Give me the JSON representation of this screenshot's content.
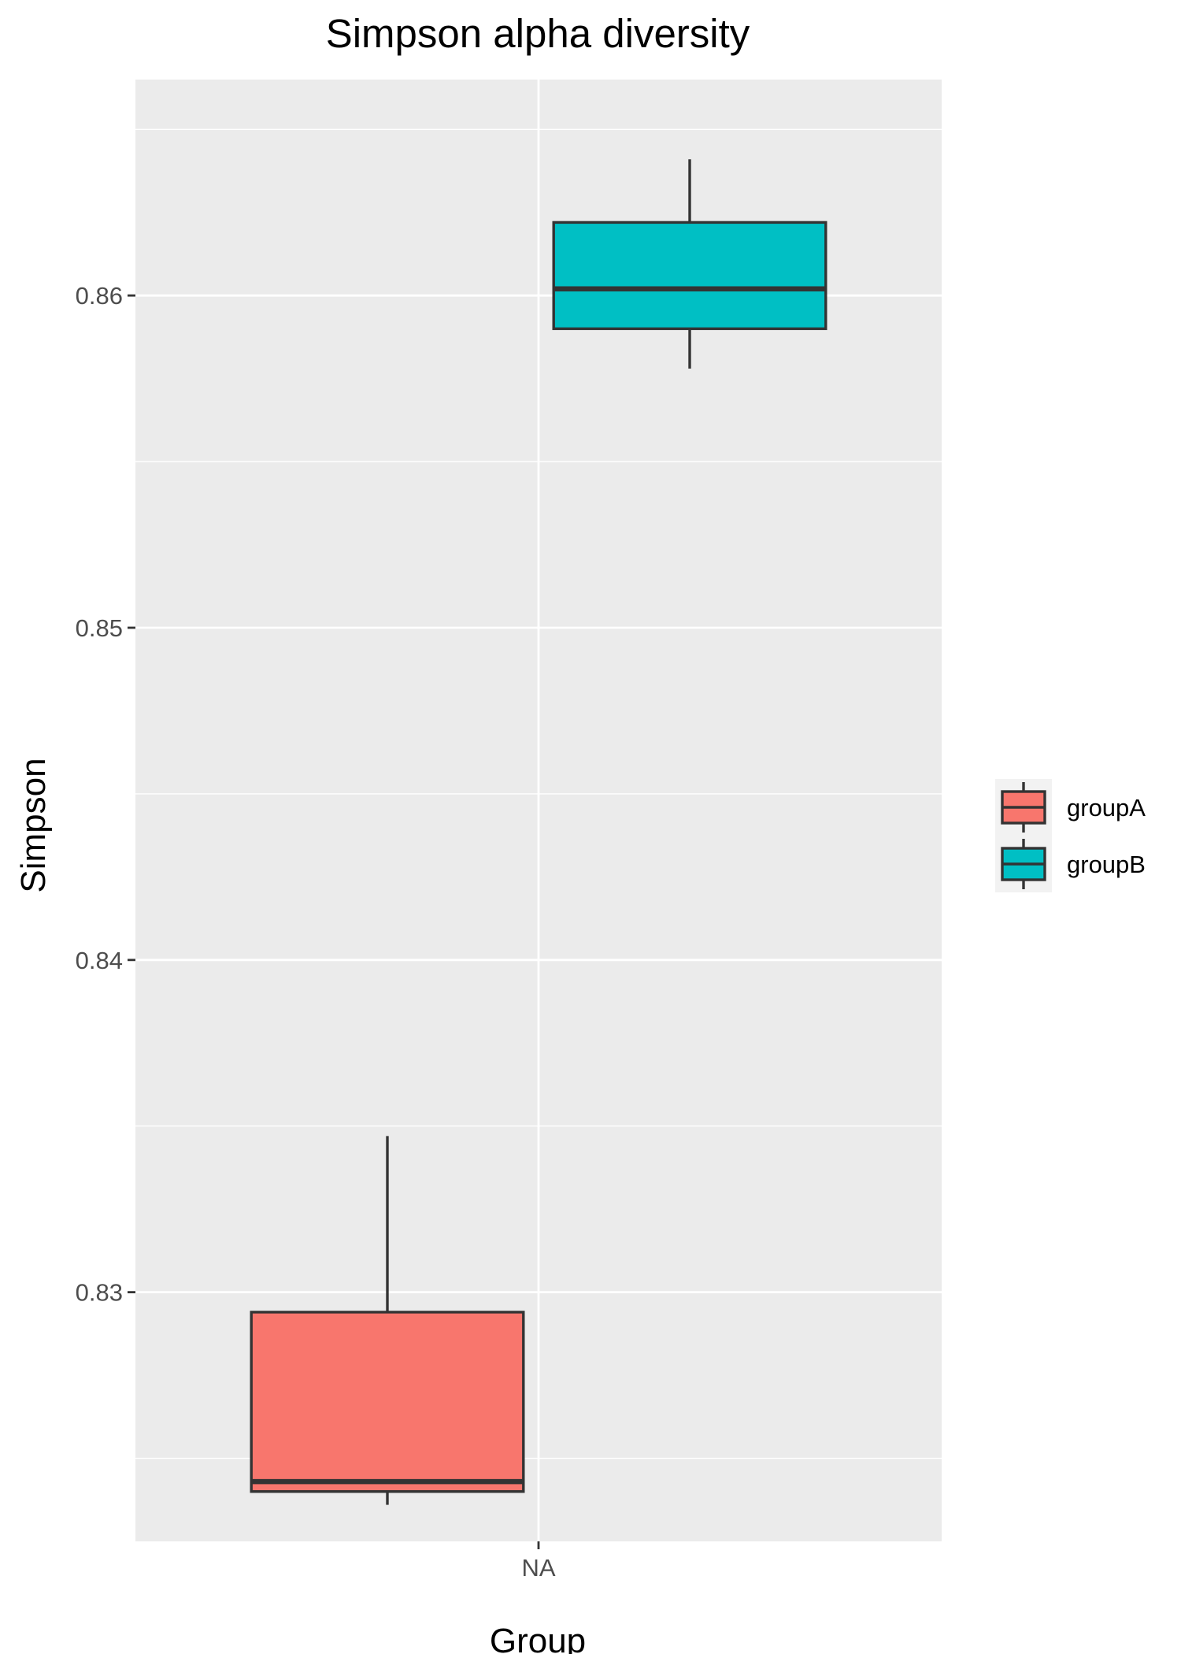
{
  "chart_data": {
    "type": "box",
    "title": "Simpson alpha diversity",
    "xlabel": "Group",
    "ylabel": "Simpson",
    "categories": [
      "NA"
    ],
    "ylim": [
      0.8225,
      0.8665
    ],
    "yticks": [
      0.83,
      0.84,
      0.85,
      0.86
    ],
    "ytick_labels": [
      "0.83",
      "0.84",
      "0.85",
      "0.86"
    ],
    "y_minor_ticks": [
      0.825,
      0.835,
      0.845,
      0.855,
      0.865
    ],
    "grid": true,
    "legend_position": "right",
    "panel_color": "#ebebeb",
    "series": [
      {
        "name": "groupA",
        "color": "#f8766d",
        "category": "NA",
        "whisker_low": 0.8236,
        "q1": 0.824,
        "median": 0.8243,
        "q3": 0.8294,
        "whisker_high": 0.8347
      },
      {
        "name": "groupB",
        "color": "#00bfc4",
        "category": "NA",
        "whisker_low": 0.8578,
        "q1": 0.859,
        "median": 0.8602,
        "q3": 0.8622,
        "whisker_high": 0.8641
      }
    ]
  }
}
